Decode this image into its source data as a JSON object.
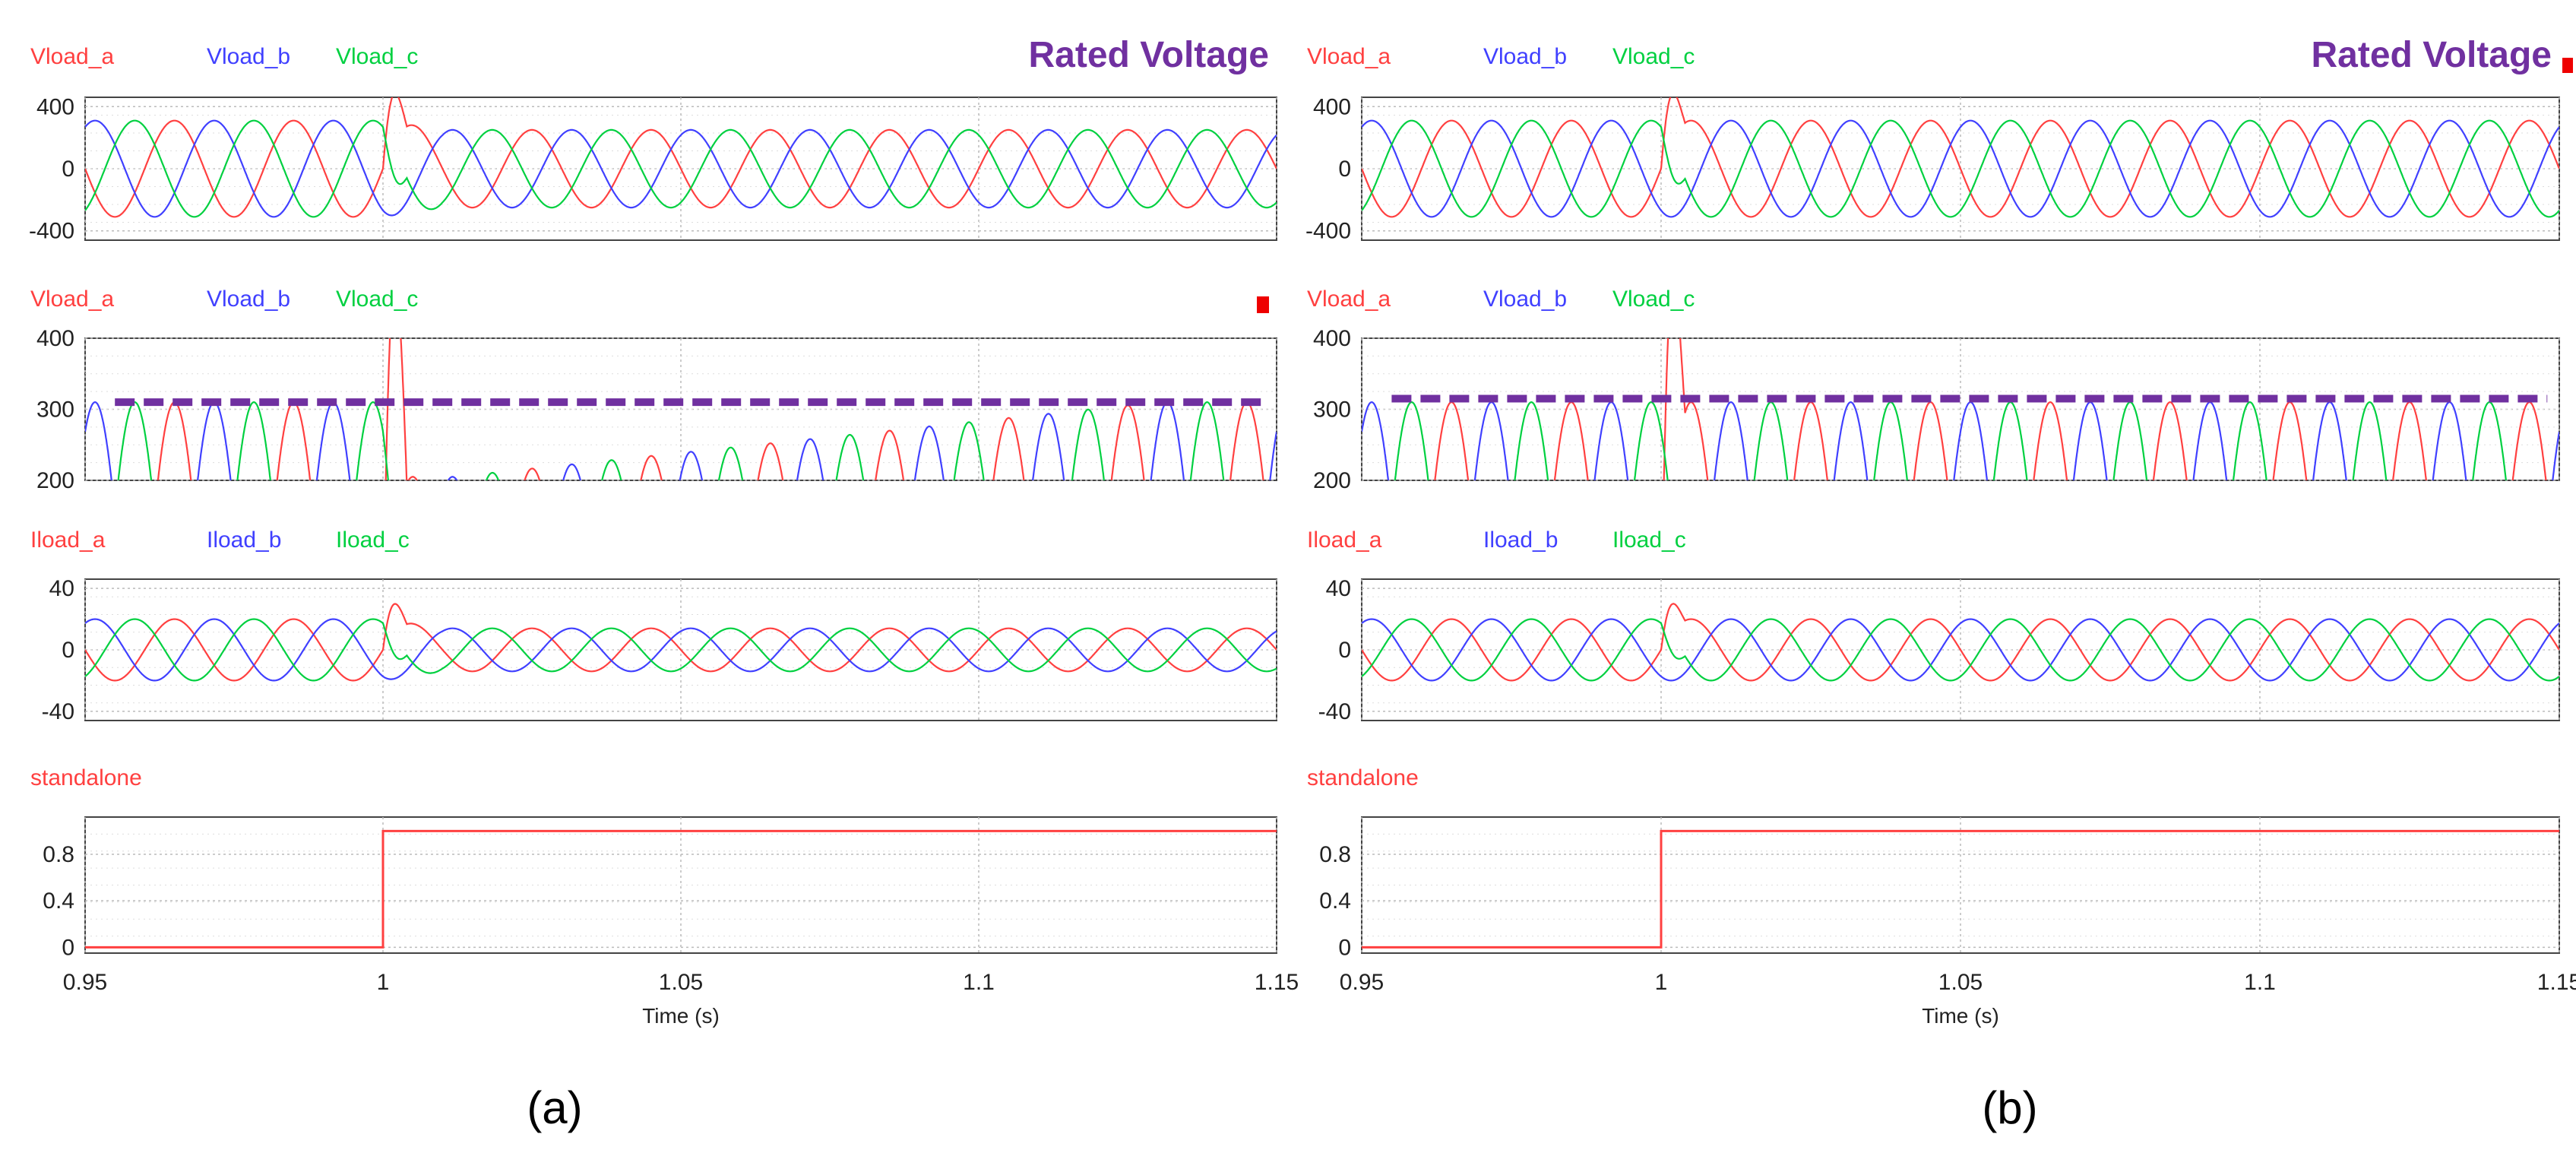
{
  "chart_data": [
    {
      "type": "line",
      "caption": "(a)",
      "xlabel": "Time (s)",
      "xlim": [
        0.95,
        1.15
      ],
      "xticks": [
        "0.95",
        "1",
        "1.05",
        "1.1",
        "1.15"
      ],
      "annotation": "Rated Voltage",
      "panels": [
        {
          "name": "vload-wave",
          "series_labels": [
            "Vload_a",
            "Vload_b",
            "Vload_c"
          ],
          "ylim": [
            -460,
            460
          ],
          "yticks": [
            "400",
            "0",
            "-400"
          ],
          "freq_hz": 50,
          "amp_before": 310,
          "amp_after": 250,
          "transient_time": 1.0,
          "transient_peak": 520
        },
        {
          "name": "vload-zoom",
          "series_labels": [
            "Vload_a",
            "Vload_b",
            "Vload_c"
          ],
          "ylim": [
            200,
            400
          ],
          "yticks": [
            "400",
            "300",
            "200"
          ],
          "rated_level": 310,
          "peaks_before": 310,
          "peak_dip": 205,
          "peak_recovered": 310,
          "recovery_time": 1.13
        },
        {
          "name": "iload-wave",
          "series_labels": [
            "Iload_a",
            "Iload_b",
            "Iload_c"
          ],
          "ylim": [
            -46,
            46
          ],
          "yticks": [
            "40",
            "0",
            "-40"
          ],
          "amp_before": 20,
          "amp_after": 14,
          "transient_peak": 32
        },
        {
          "name": "standalone",
          "series_labels": [
            "standalone"
          ],
          "ylim": [
            -0.05,
            1.12
          ],
          "yticks": [
            "0.8",
            "0.4",
            "0"
          ],
          "step_time": 1.0,
          "low": 0,
          "high": 1
        }
      ]
    },
    {
      "type": "line",
      "caption": "(b)",
      "xlabel": "Time (s)",
      "xlim": [
        0.95,
        1.15
      ],
      "xticks": [
        "0.95",
        "1",
        "1.05",
        "1.1",
        "1.15"
      ],
      "annotation": "Rated Voltage",
      "panels": [
        {
          "name": "vload-wave",
          "series_labels": [
            "Vload_a",
            "Vload_b",
            "Vload_c"
          ],
          "ylim": [
            -460,
            460
          ],
          "yticks": [
            "400",
            "0",
            "-400"
          ],
          "freq_hz": 50,
          "amp_before": 310,
          "amp_after": 310,
          "transient_time": 1.0,
          "transient_peak": 520
        },
        {
          "name": "vload-zoom",
          "series_labels": [
            "Vload_a",
            "Vload_b",
            "Vload_c"
          ],
          "ylim": [
            200,
            400
          ],
          "yticks": [
            "400",
            "300",
            "200"
          ],
          "rated_level": 315,
          "peaks_before": 310,
          "peak_dip": 310,
          "peak_recovered": 310,
          "recovery_time": 1.0
        },
        {
          "name": "iload-wave",
          "series_labels": [
            "Iload_a",
            "Iload_b",
            "Iload_c"
          ],
          "ylim": [
            -46,
            46
          ],
          "yticks": [
            "40",
            "0",
            "-40"
          ],
          "amp_before": 20,
          "amp_after": 20,
          "transient_peak": 32
        },
        {
          "name": "standalone",
          "series_labels": [
            "standalone"
          ],
          "ylim": [
            -0.05,
            1.12
          ],
          "yticks": [
            "0.8",
            "0.4",
            "0"
          ],
          "step_time": 1.0,
          "low": 0,
          "high": 1
        }
      ]
    }
  ],
  "colors": {
    "phase_a": "#ff4040",
    "phase_b": "#4040ff",
    "phase_c": "#00d040",
    "rated": "#7030a0",
    "marker": "#ee0000"
  }
}
